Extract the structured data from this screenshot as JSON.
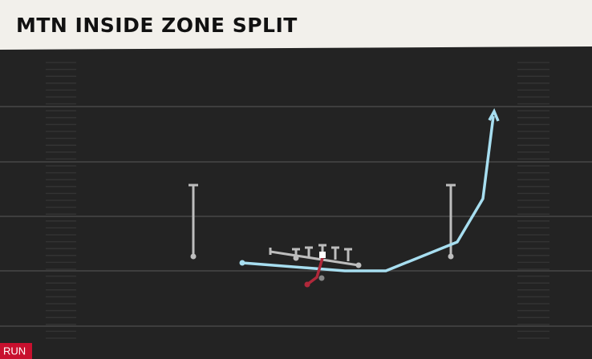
{
  "header": {
    "title": "MTN INSIDE ZONE SPLIT"
  },
  "tag": {
    "label": "RUN"
  }
}
